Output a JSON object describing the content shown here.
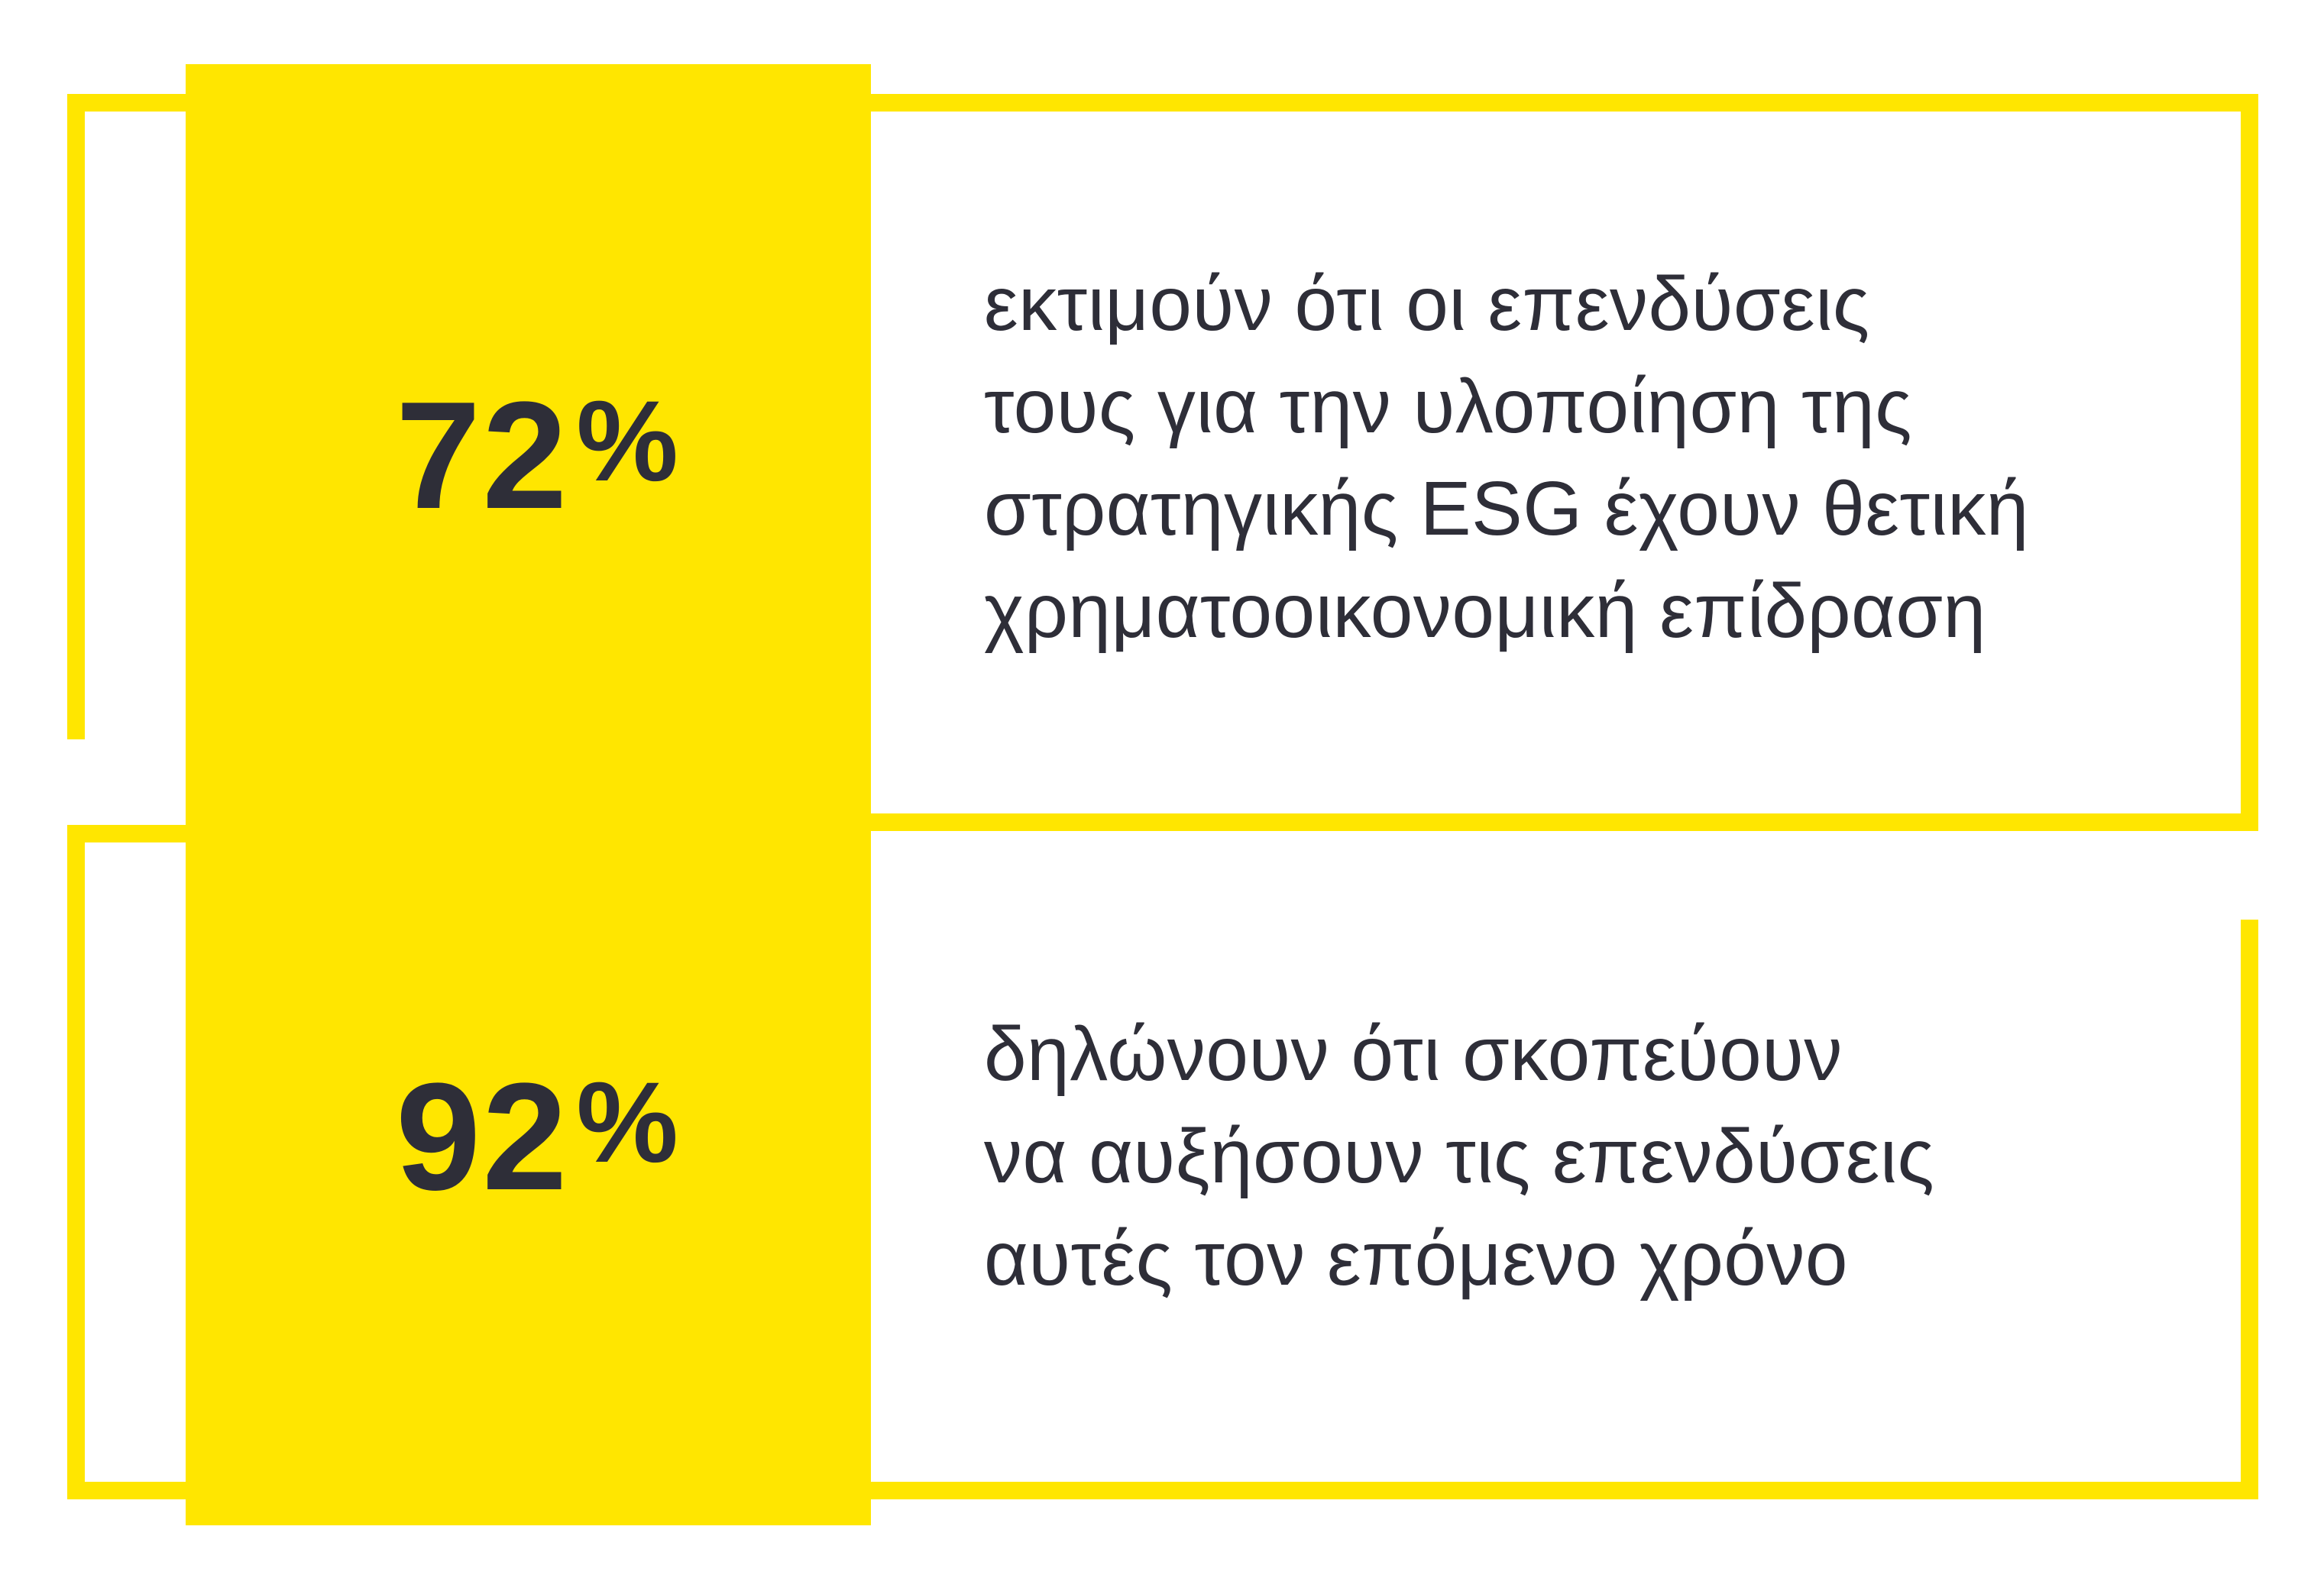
{
  "colors": {
    "yellow": "#FFE600",
    "ink": "#2E2E38",
    "background": "#FFFFFF"
  },
  "stats": [
    {
      "value": "72",
      "unit": "%",
      "lines": [
        "εκτιμούν ότι οι επενδύσεις",
        "τους για την υλοποίηση της",
        "στρατηγικής ESG έχουν θετική",
        "χρηματοοικονομική επίδραση"
      ]
    },
    {
      "value": "92",
      "unit": "%",
      "lines": [
        "δηλώνουν ότι σκοπεύουν",
        "να αυξήσουν τις επενδύσεις",
        "αυτές τον επόμενο χρόνο"
      ]
    }
  ],
  "chart_data": {
    "type": "table",
    "title": "",
    "columns": [
      "value",
      "description"
    ],
    "rows": [
      [
        "72%",
        "εκτιμούν ότι οι επενδύσεις τους για την υλοποίηση της στρατηγικής ESG έχουν θετική χρηματοοικονομική επίδραση"
      ],
      [
        "92%",
        "δηλώνουν ότι σκοπεύουν να αυξήσουν τις επενδύσεις αυτές τον επόμενο χρόνο"
      ]
    ],
    "accent_color": "#FFE600",
    "text_color": "#2E2E38",
    "layout": "two stacked outlined panels with offset open-corner yellow frames and a solid yellow vertical bar holding the percentages"
  }
}
